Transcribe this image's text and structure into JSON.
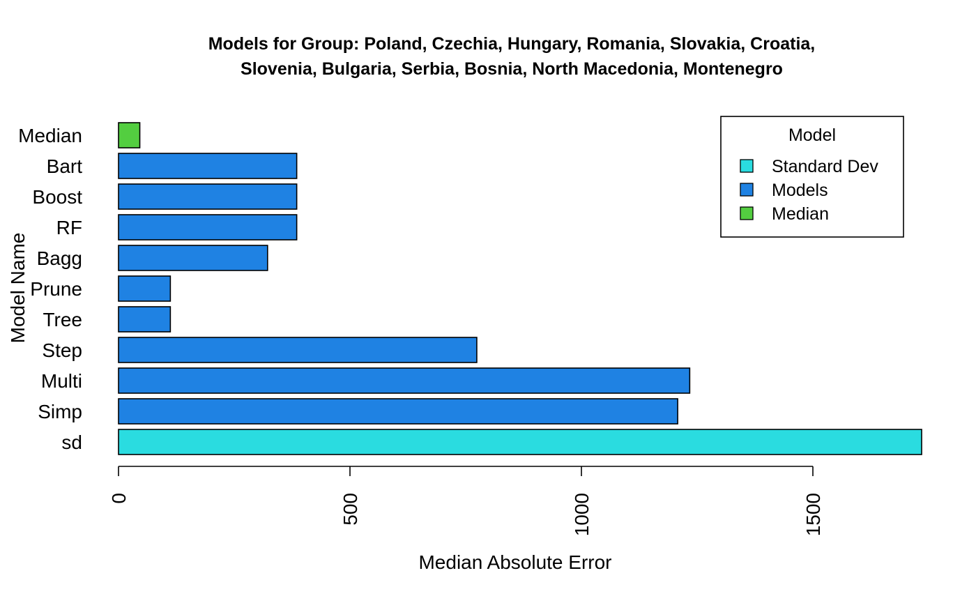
{
  "chart_data": {
    "type": "bar",
    "orientation": "horizontal",
    "title_lines": [
      "Models for Group: Poland, Czechia, Hungary, Romania, Slovakia, Croatia,",
      "Slovenia, Bulgaria, Serbia, Bosnia, North Macedonia, Montenegro"
    ],
    "xlabel": "Median Absolute Error",
    "ylabel": "Model Name",
    "xlim": [
      0,
      1750
    ],
    "x_ticks": [
      0,
      500,
      1000,
      1500
    ],
    "categories": [
      "sd",
      "Simp",
      "Multi",
      "Step",
      "Tree",
      "Prune",
      "Bagg",
      "RF",
      "Boost",
      "Bart",
      "Median"
    ],
    "values": [
      1735,
      1208,
      1234,
      774,
      112,
      112,
      322,
      385,
      385,
      385,
      46
    ],
    "groups": [
      "Standard Dev",
      "Models",
      "Models",
      "Models",
      "Models",
      "Models",
      "Models",
      "Models",
      "Models",
      "Models",
      "Median"
    ],
    "legend": {
      "title": "Model",
      "position": "top-right",
      "entries": [
        {
          "label": "Standard Dev",
          "color": "#2ADCE0"
        },
        {
          "label": "Models",
          "color": "#1F82E3"
        },
        {
          "label": "Median",
          "color": "#53CE40"
        }
      ]
    },
    "colors": {
      "Standard Dev": "#2ADCE0",
      "Models": "#1F82E3",
      "Median": "#53CE40"
    },
    "grid": false
  }
}
